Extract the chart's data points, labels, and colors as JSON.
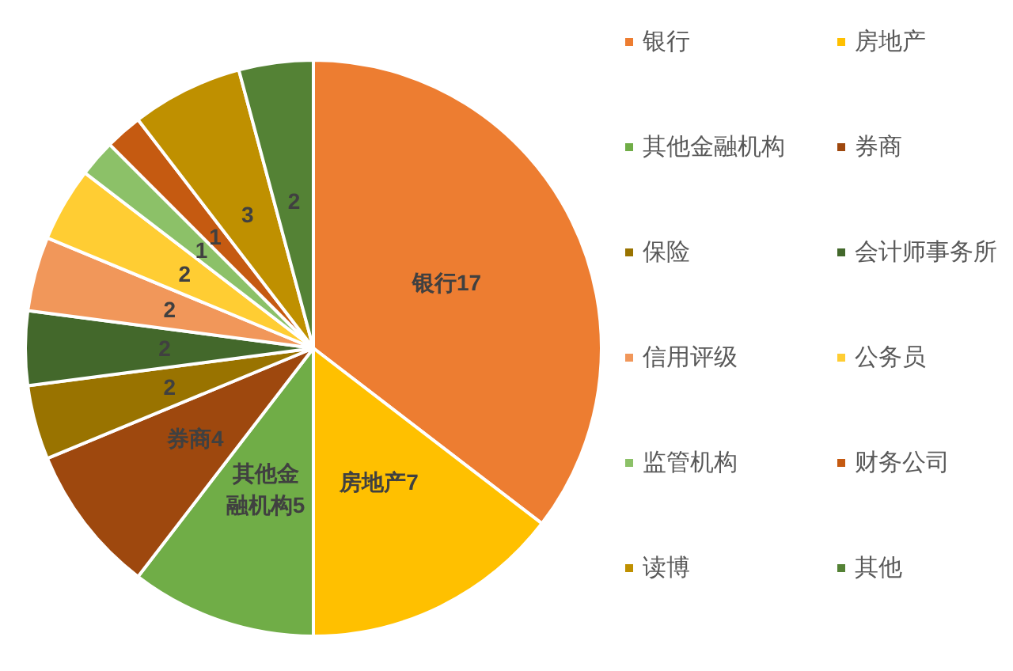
{
  "chart_data": {
    "type": "pie",
    "categories": [
      "银行",
      "房地产",
      "其他金融机构",
      "券商",
      "保险",
      "会计师事务所",
      "信用评级",
      "公务员",
      "监管机构",
      "财务公司",
      "读博",
      "其他"
    ],
    "values": [
      17,
      7,
      5,
      4,
      2,
      2,
      2,
      2,
      1,
      1,
      3,
      2
    ],
    "colors": [
      "#ed7d31",
      "#ffc000",
      "#70ad47",
      "#9e480e",
      "#997300",
      "#43682b",
      "#f1975a",
      "#ffcd33",
      "#8cc168",
      "#c55a11",
      "#bf9000",
      "#548235"
    ],
    "value_labels": [
      "银行17",
      "房地产7",
      "其他金融机构5",
      "券商4",
      "2",
      "2",
      "2",
      "2",
      "1",
      "1",
      "3",
      "2"
    ],
    "legend": "right"
  }
}
